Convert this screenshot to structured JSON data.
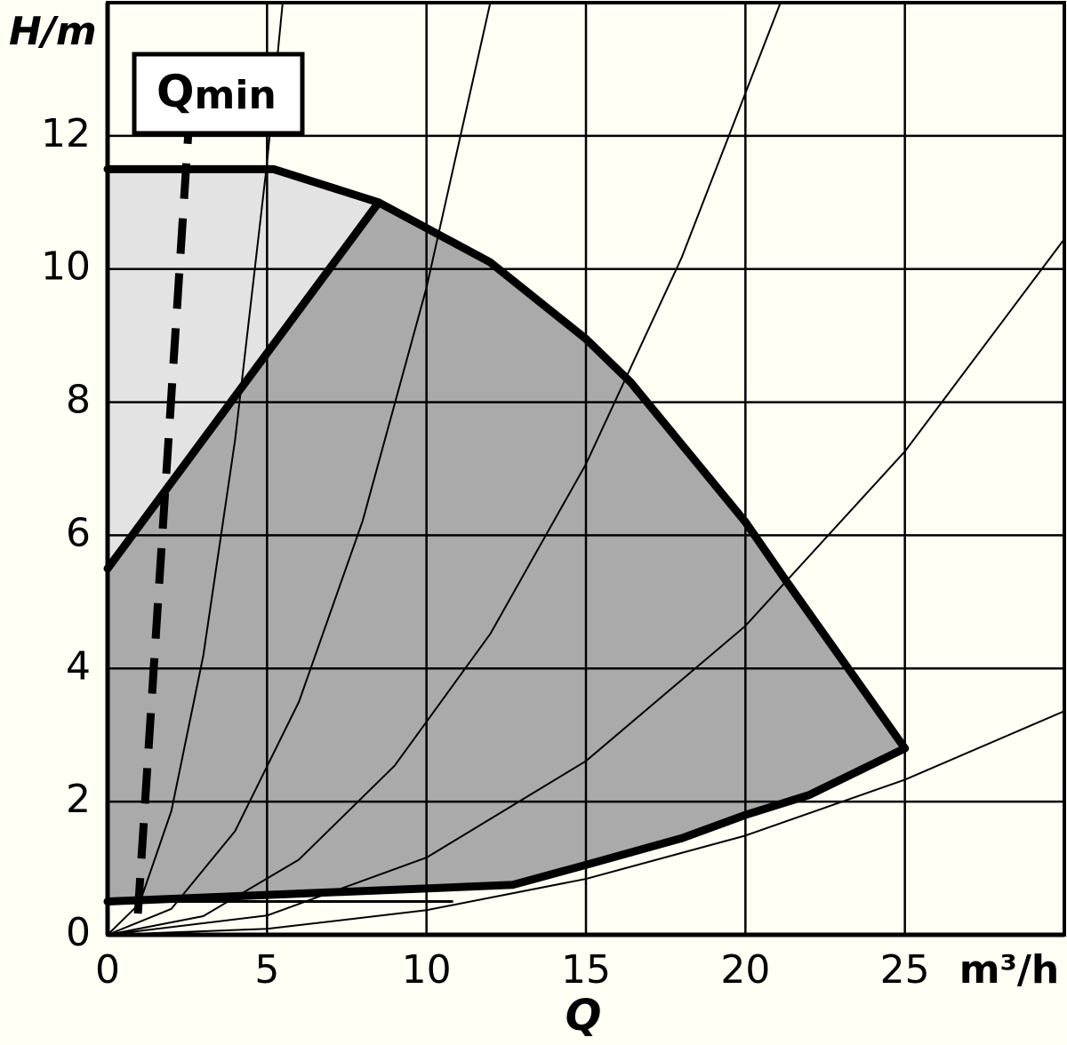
{
  "chart_data": {
    "type": "line",
    "y_label": "H/m",
    "x_label": "Q",
    "x_unit": "m³/h",
    "annotation": {
      "symbol": "Q",
      "subscript": "min"
    },
    "xlim": [
      0,
      30
    ],
    "ylim": [
      0,
      14
    ],
    "xticks": [
      0,
      5,
      10,
      15,
      20,
      25
    ],
    "yticks": [
      0,
      2,
      4,
      6,
      8,
      10,
      12
    ],
    "grid": true,
    "background": "#fffff5",
    "series": [
      {
        "x": [
          0,
          0,
          5.2,
          8.5
        ],
        "values": [
          5.5,
          11.5,
          11.5,
          11.0
        ],
        "fill": "#e3e3e3",
        "color": "#e3e3e3",
        "width": 0
      },
      {
        "x": [
          0,
          0,
          8.5,
          12,
          15,
          16.4,
          20,
          21.3,
          25,
          22,
          20,
          18,
          15,
          12.7,
          0
        ],
        "values": [
          0.5,
          5.5,
          11.0,
          10.1,
          8.95,
          8.3,
          6.2,
          5.3,
          2.8,
          2.1,
          1.8,
          1.45,
          1.05,
          0.75,
          0.5
        ],
        "fill": "#aaaaaa",
        "color": "#aaaaaa",
        "width": 0
      },
      {
        "x": [
          0,
          1,
          2,
          3,
          4,
          5,
          5.49
        ],
        "values": [
          0,
          0.47,
          1.86,
          4.19,
          7.44,
          11.6,
          14
        ],
        "color": "#000000",
        "width": 2
      },
      {
        "x": [
          0,
          2,
          4,
          6,
          8,
          10,
          12
        ],
        "values": [
          0,
          0.39,
          1.56,
          3.5,
          6.22,
          9.72,
          14
        ],
        "color": "#000000",
        "width": 2
      },
      {
        "x": [
          0,
          3,
          6,
          9,
          12,
          15,
          18,
          21.1
        ],
        "values": [
          0,
          0.28,
          1.13,
          2.54,
          4.52,
          7.07,
          10.17,
          14
        ],
        "color": "#000000",
        "width": 2
      },
      {
        "x": [
          0,
          5,
          10,
          15,
          20,
          25,
          30
        ],
        "values": [
          0,
          0.29,
          1.16,
          2.61,
          4.64,
          7.26,
          10.45
        ],
        "color": "#000000",
        "width": 2
      },
      {
        "x": [
          0,
          5,
          10,
          15,
          20,
          25,
          30
        ],
        "values": [
          0,
          0.09,
          0.37,
          0.84,
          1.49,
          2.33,
          3.36
        ],
        "color": "#000000",
        "width": 2
      },
      {
        "x": [
          0,
          10.8
        ],
        "values": [
          0.5,
          0.5
        ],
        "color": "#000000",
        "width": 3
      },
      {
        "x": [
          0,
          5.2,
          8.5,
          12,
          15,
          16.4,
          20,
          21.3,
          25
        ],
        "values": [
          11.5,
          11.5,
          11.0,
          10.1,
          8.95,
          8.3,
          6.2,
          5.3,
          2.8
        ],
        "color": "#000000",
        "width": 9
      },
      {
        "x": [
          0,
          8.5
        ],
        "values": [
          5.5,
          11.0
        ],
        "color": "#000000",
        "width": 9
      },
      {
        "x": [
          0,
          12.7,
          15,
          18,
          20,
          22,
          25
        ],
        "values": [
          0.5,
          0.75,
          1.05,
          1.45,
          1.8,
          2.1,
          2.8
        ],
        "color": "#000000",
        "width": 9
      },
      {
        "x": [
          0.95,
          2.53
        ],
        "values": [
          0.32,
          12.03
        ],
        "color": "#000000",
        "width": 9,
        "dash": true
      }
    ]
  }
}
